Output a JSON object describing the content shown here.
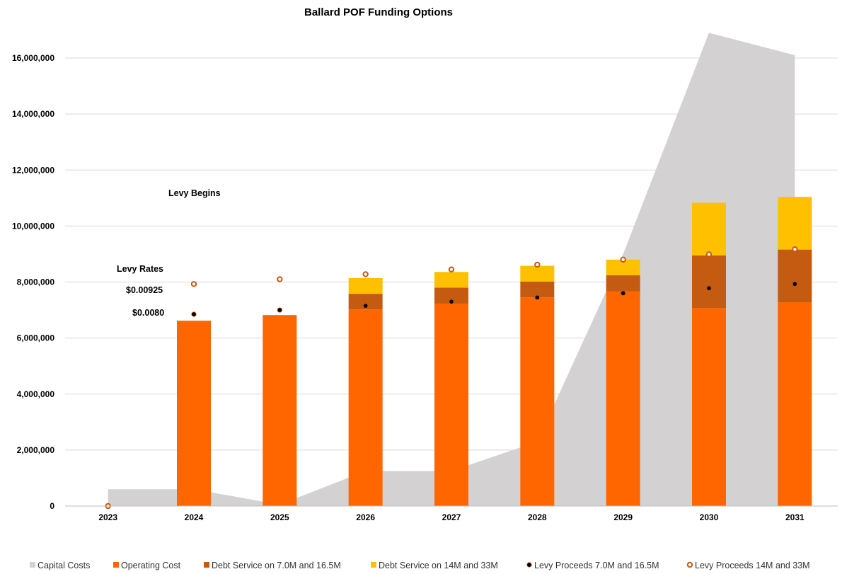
{
  "chart_data": {
    "type": "bar",
    "title": "Ballard POF Funding Options",
    "categories": [
      "2023",
      "2024",
      "2025",
      "2026",
      "2027",
      "2028",
      "2029",
      "2030",
      "2031"
    ],
    "ylim": [
      0,
      17000000
    ],
    "yticks": [
      0,
      2000000,
      4000000,
      6000000,
      8000000,
      10000000,
      12000000,
      14000000,
      16000000
    ],
    "ytick_labels": [
      "0",
      "2,000,000",
      "4,000,000",
      "6,000,000",
      "8,000,000",
      "10,000,000",
      "12,000,000",
      "14,000,000",
      "16,000,000"
    ],
    "grid": true,
    "legend_position": "bottom",
    "series": [
      {
        "name": "Capital Costs",
        "type": "area",
        "color": "#d3d1d2",
        "values": [
          600000,
          600000,
          50000,
          1250000,
          1250000,
          2300000,
          9000000,
          16900000,
          16100000
        ]
      },
      {
        "name": "Operating Cost",
        "type": "bar",
        "color": "#ff6600",
        "values": [
          0,
          6620000,
          6820000,
          7020000,
          7230000,
          7450000,
          7670000,
          7070000,
          7280000
        ]
      },
      {
        "name": "Debt Service on 7.0M and 16.5M",
        "type": "bar",
        "color": "#c55a11",
        "values": [
          0,
          0,
          0,
          560000,
          570000,
          570000,
          570000,
          1880000,
          1880000
        ]
      },
      {
        "name": "Debt Service on 14M and 33M",
        "type": "bar",
        "color": "#ffc000",
        "values": [
          0,
          0,
          0,
          560000,
          560000,
          560000,
          560000,
          1880000,
          1880000
        ]
      },
      {
        "name": "Levy Proceeds 7.0M and 16.5M",
        "type": "scatter",
        "color": "#000000",
        "values": [
          0,
          6850000,
          7000000,
          7150000,
          7300000,
          7450000,
          7600000,
          7780000,
          7930000
        ]
      },
      {
        "name": "Levy Proceeds 14M and 33M",
        "type": "scatter",
        "color": "#c55a11",
        "values": [
          0,
          7930000,
          8100000,
          8280000,
          8450000,
          8620000,
          8800000,
          8990000,
          9170000
        ]
      }
    ],
    "annotations": [
      {
        "text": "Levy Begins"
      },
      {
        "text": "Levy Rates"
      },
      {
        "text": "$0.00925"
      },
      {
        "text": "$0.0080"
      }
    ]
  }
}
